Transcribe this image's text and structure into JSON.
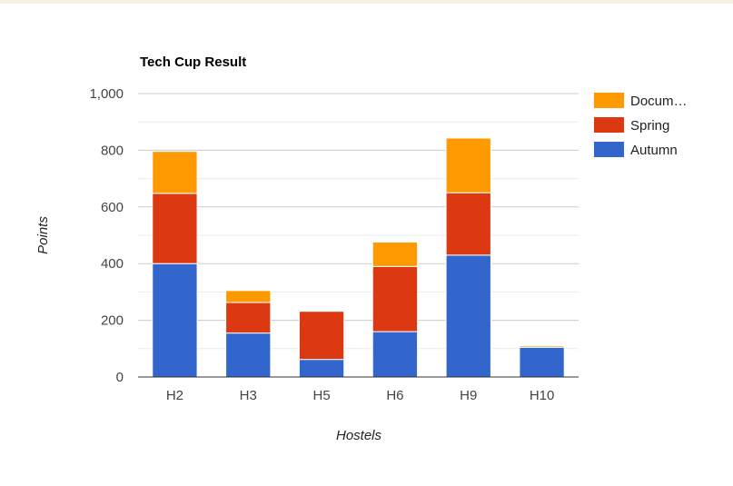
{
  "chart_data": {
    "type": "bar",
    "stacked": true,
    "title": "Tech Cup Result",
    "xlabel": "Hostels",
    "ylabel": "Points",
    "ylim": [
      0,
      1000
    ],
    "yticks": [
      0,
      200,
      400,
      600,
      800,
      1000
    ],
    "ytick_labels": [
      "0",
      "200",
      "400",
      "600",
      "800",
      "1,000"
    ],
    "grid": true,
    "legend_position": "right",
    "categories": [
      "H2",
      "H3",
      "H5",
      "H6",
      "H9",
      "H10"
    ],
    "series": [
      {
        "name": "Autumn",
        "color": "#3366cc",
        "values": [
          400,
          155,
          62,
          160,
          430,
          105
        ]
      },
      {
        "name": "Spring",
        "color": "#dc3912",
        "values": [
          248,
          108,
          170,
          230,
          220,
          0
        ]
      },
      {
        "name": "Docum…",
        "color": "#ff9900",
        "values": [
          148,
          42,
          3,
          86,
          193,
          5
        ]
      }
    ]
  }
}
